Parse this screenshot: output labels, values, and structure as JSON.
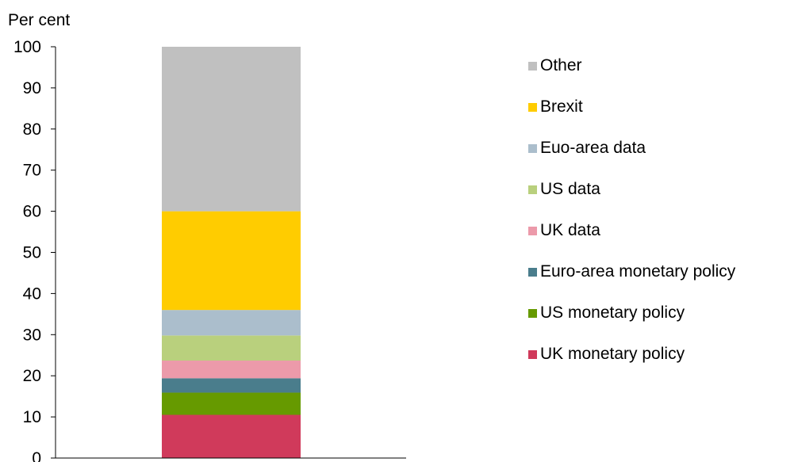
{
  "chart_data": {
    "type": "bar",
    "stacked": true,
    "title": "",
    "ylabel": "Per cent",
    "xlabel": "",
    "ylim": [
      0,
      100
    ],
    "yticks": [
      0,
      10,
      20,
      30,
      40,
      50,
      60,
      70,
      80,
      90,
      100
    ],
    "grid": false,
    "legend_position": "right",
    "categories": [
      ""
    ],
    "series": [
      {
        "name": "UK monetary policy",
        "values": [
          10.5
        ],
        "color": "#d03a5b"
      },
      {
        "name": "US monetary policy",
        "values": [
          5.4
        ],
        "color": "#669a00"
      },
      {
        "name": "Euro-area monetary policy",
        "values": [
          3.5
        ],
        "color": "#4a7d8c"
      },
      {
        "name": "UK data",
        "values": [
          4.3
        ],
        "color": "#ec9aaa"
      },
      {
        "name": "US data",
        "values": [
          6.1
        ],
        "color": "#b9d07d"
      },
      {
        "name": "Euo-area data",
        "values": [
          6.2
        ],
        "color": "#abbecc"
      },
      {
        "name": "Brexit",
        "values": [
          24.0
        ],
        "color": "#ffcc00"
      },
      {
        "name": "Other",
        "values": [
          40.0
        ],
        "color": "#c0c0c0"
      }
    ]
  }
}
